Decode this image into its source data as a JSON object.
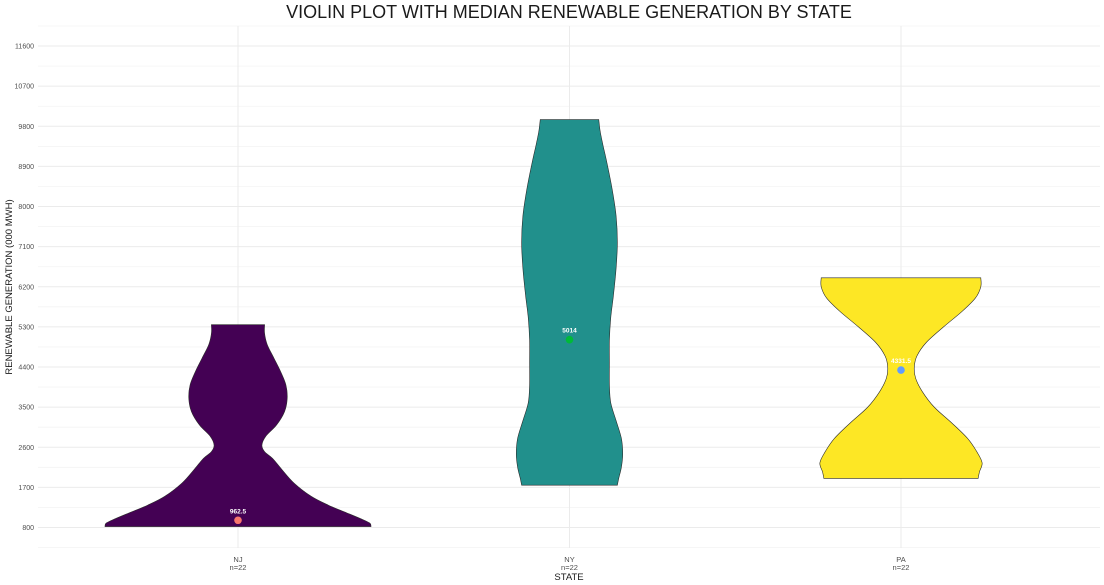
{
  "chart_data": {
    "type": "violin",
    "title": "VIOLIN PLOT WITH MEDIAN RENEWABLE GENERATION BY STATE",
    "xlabel": "STATE",
    "ylabel": "RENEWABLE GENERATION (000 MWH)",
    "ylim": [
      340,
      12050
    ],
    "yticks": [
      800,
      1700,
      2600,
      3500,
      4400,
      5300,
      6200,
      7100,
      8000,
      8900,
      9800,
      10700,
      11600
    ],
    "grid": true,
    "legend": "none",
    "categories": [
      "NJ",
      "NY",
      "PA"
    ],
    "category_labels": [
      {
        "name": "NJ",
        "count": "n=22"
      },
      {
        "name": "NY",
        "count": "n=22"
      },
      {
        "name": "PA",
        "count": "n=22"
      }
    ],
    "violins": [
      {
        "name": "NJ",
        "color": "#440154",
        "median": 962.5,
        "median_label": "962.5",
        "median_color": "#F8766D",
        "min": 820,
        "max": 5350,
        "density": [
          [
            820,
            1.0
          ],
          [
            900,
            0.99
          ],
          [
            1000,
            0.92
          ],
          [
            1150,
            0.8
          ],
          [
            1300,
            0.68
          ],
          [
            1500,
            0.55
          ],
          [
            1800,
            0.42
          ],
          [
            2100,
            0.33
          ],
          [
            2350,
            0.26
          ],
          [
            2500,
            0.2
          ],
          [
            2650,
            0.18
          ],
          [
            2850,
            0.21
          ],
          [
            3100,
            0.29
          ],
          [
            3400,
            0.35
          ],
          [
            3700,
            0.37
          ],
          [
            4000,
            0.36
          ],
          [
            4300,
            0.32
          ],
          [
            4600,
            0.27
          ],
          [
            4900,
            0.22
          ],
          [
            5150,
            0.2
          ],
          [
            5350,
            0.2
          ]
        ]
      },
      {
        "name": "NY",
        "color": "#21908C",
        "median": 5014,
        "median_label": "5014",
        "median_color": "#00BA38",
        "min": 1750,
        "max": 9950,
        "density": [
          [
            1750,
            0.36
          ],
          [
            1900,
            0.37
          ],
          [
            2150,
            0.39
          ],
          [
            2450,
            0.4
          ],
          [
            2800,
            0.39
          ],
          [
            3200,
            0.35
          ],
          [
            3600,
            0.31
          ],
          [
            4000,
            0.3
          ],
          [
            4500,
            0.3
          ],
          [
            5000,
            0.3
          ],
          [
            5500,
            0.31
          ],
          [
            6000,
            0.33
          ],
          [
            6600,
            0.35
          ],
          [
            7200,
            0.36
          ],
          [
            7800,
            0.35
          ],
          [
            8400,
            0.32
          ],
          [
            9000,
            0.28
          ],
          [
            9400,
            0.25
          ],
          [
            9700,
            0.23
          ],
          [
            9950,
            0.22
          ]
        ]
      },
      {
        "name": "PA",
        "color": "#FDE725",
        "median": 4331.5,
        "median_label": "4331.5",
        "median_color": "#619CFF",
        "min": 1900,
        "max": 6400,
        "density": [
          [
            1900,
            0.58
          ],
          [
            2050,
            0.59
          ],
          [
            2250,
            0.61
          ],
          [
            2500,
            0.57
          ],
          [
            2800,
            0.5
          ],
          [
            3150,
            0.38
          ],
          [
            3500,
            0.25
          ],
          [
            3850,
            0.16
          ],
          [
            4150,
            0.11
          ],
          [
            4400,
            0.1
          ],
          [
            4650,
            0.12
          ],
          [
            4950,
            0.19
          ],
          [
            5300,
            0.32
          ],
          [
            5650,
            0.46
          ],
          [
            5950,
            0.56
          ],
          [
            6200,
            0.6
          ],
          [
            6400,
            0.6
          ]
        ]
      }
    ]
  }
}
